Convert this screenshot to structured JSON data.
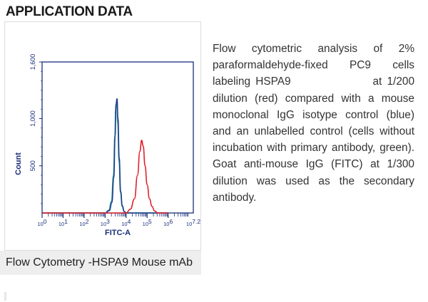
{
  "header": {
    "title": "APPLICATION DATA"
  },
  "description": "Flow cytometric analysis of 2% paraformaldehyde-fixed PC9 cells labeling HSPA9                at 1/200 dilution (red) compared with a mouse monoclonal IgG isotype control (blue) and an unlabelled control (cells without incubation with primary antibody, green). Goat anti-mouse IgG (FITC) at 1/300 dilution was used as the secondary antibody.",
  "caption": "Flow Cytometry -HSPA9 Mouse mAb",
  "colors": {
    "red": "#e0202a",
    "blue": "#1f3f8a",
    "green": "#2fa3a0",
    "axis": "#1a2f7a"
  },
  "chart_data": {
    "type": "line",
    "title": "",
    "xlabel": "FITC-A",
    "ylabel": "Count",
    "x_scale": "log",
    "xlim": [
      1,
      15848932
    ],
    "ylim": [
      0,
      1600
    ],
    "x_ticks": [
      {
        "value": 1,
        "base": "10",
        "exp": "0"
      },
      {
        "value": 10,
        "base": "10",
        "exp": "1"
      },
      {
        "value": 100,
        "base": "10",
        "exp": "2"
      },
      {
        "value": 1000,
        "base": "10",
        "exp": "3"
      },
      {
        "value": 10000,
        "base": "10",
        "exp": "4"
      },
      {
        "value": 100000,
        "base": "10",
        "exp": "5"
      },
      {
        "value": 1000000,
        "base": "10",
        "exp": "6"
      },
      {
        "value": 15848932,
        "base": "10",
        "exp": "7.2"
      }
    ],
    "y_ticks": [
      {
        "value": 500,
        "label": "500"
      },
      {
        "value": 1000,
        "label": "1,000"
      },
      {
        "value": 1600,
        "label": "1,600"
      }
    ],
    "series": [
      {
        "color": "#2fa3a0",
        "x": [
          1,
          1000,
          1500,
          2000,
          2500,
          2900,
          3200,
          3600,
          4000,
          4600,
          5400,
          6500,
          8000,
          10000,
          1000000
        ],
        "y": [
          0,
          0,
          30,
          120,
          400,
          800,
          1100,
          1150,
          950,
          550,
          220,
          70,
          15,
          0,
          0
        ]
      },
      {
        "color": "#1f3f8a",
        "x": [
          1,
          1000,
          1600,
          2100,
          2600,
          3000,
          3300,
          3700,
          4100,
          4700,
          5500,
          6600,
          8200,
          10500,
          1000000
        ],
        "y": [
          0,
          0,
          25,
          110,
          380,
          820,
          1150,
          1210,
          1000,
          580,
          230,
          75,
          15,
          0,
          0
        ]
      },
      {
        "color": "#e0202a",
        "x": [
          1,
          10000,
          16000,
          25000,
          35000,
          45000,
          55000,
          65000,
          80000,
          100000,
          130000,
          170000,
          230000,
          320000,
          1000000
        ],
        "y": [
          0,
          0,
          40,
          150,
          400,
          650,
          770,
          710,
          500,
          300,
          150,
          70,
          20,
          0,
          0
        ]
      }
    ]
  }
}
